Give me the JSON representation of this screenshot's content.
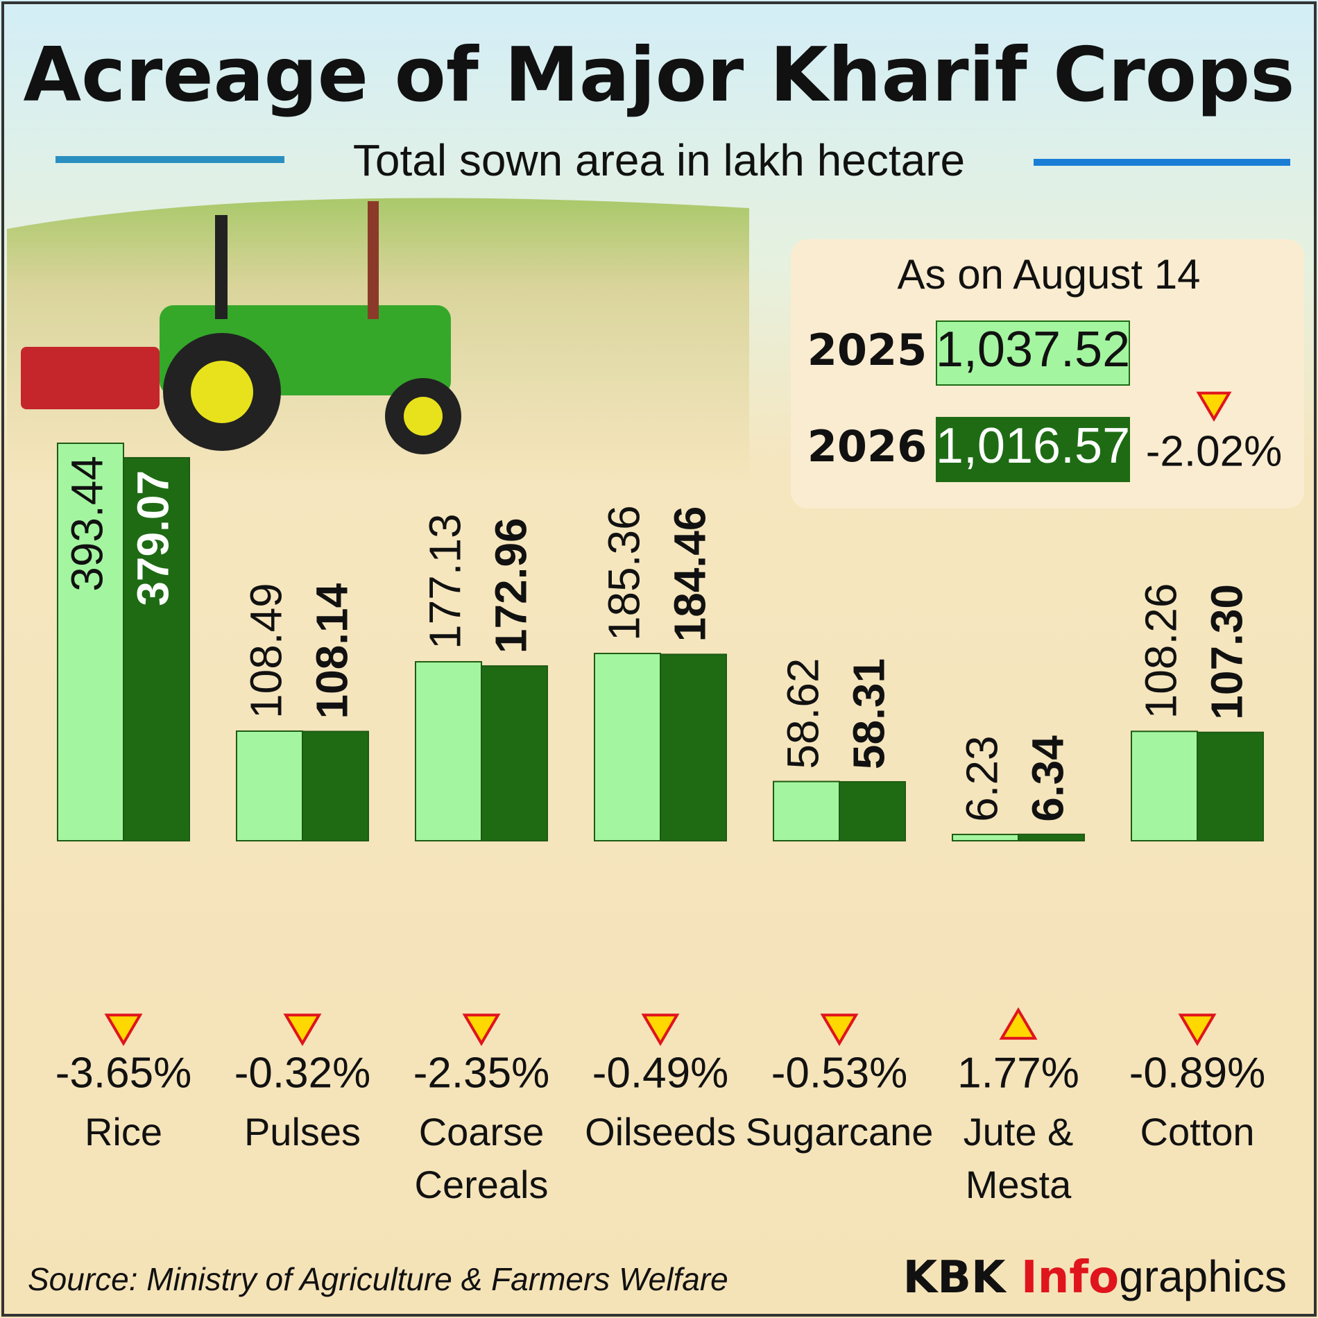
{
  "chart_data": {
    "type": "bar",
    "title": "Acreage of Major Kharif Crops",
    "subtitle": "Total sown area in lakh hectare",
    "categories": [
      "Rice",
      "Pulses",
      "Coarse Cereals",
      "Oilseeds",
      "Sugarcane",
      "Jute & Mesta",
      "Cotton"
    ],
    "series": [
      {
        "name": "2025",
        "color": "#a4f5a0",
        "values": [
          393.44,
          108.49,
          177.13,
          185.36,
          58.62,
          6.23,
          108.26
        ],
        "value_labels": [
          "393.44",
          "108.49",
          "177.13",
          "185.36",
          "58.62",
          "6.23",
          "108.26"
        ]
      },
      {
        "name": "2026",
        "color": "#1e6b14",
        "values": [
          379.07,
          108.14,
          172.96,
          184.46,
          58.31,
          6.34,
          107.3
        ],
        "value_labels": [
          "379.07",
          "108.14",
          "172.96",
          "184.46",
          "58.31",
          "6.34",
          "107.30"
        ]
      }
    ],
    "changes": [
      {
        "value": -3.65,
        "label": "-3.65%"
      },
      {
        "value": -0.32,
        "label": "-0.32%"
      },
      {
        "value": -2.35,
        "label": "-2.35%"
      },
      {
        "value": -0.49,
        "label": "-0.49%"
      },
      {
        "value": -0.53,
        "label": "-0.53%"
      },
      {
        "value": 1.77,
        "label": "1.77%"
      },
      {
        "value": -0.89,
        "label": "-0.89%"
      }
    ],
    "summary": {
      "heading": "As on August 14",
      "totals": [
        {
          "value": 1037.52,
          "label": "1,037.52"
        },
        {
          "value": 1016.57,
          "label": "1,016.57"
        }
      ],
      "change": {
        "value": -2.02,
        "label": "-2.02%"
      }
    },
    "source": "Source: Ministry of Agriculture & Farmers Welfare",
    "brand": [
      "KBK ",
      "Info",
      "graphics"
    ]
  }
}
